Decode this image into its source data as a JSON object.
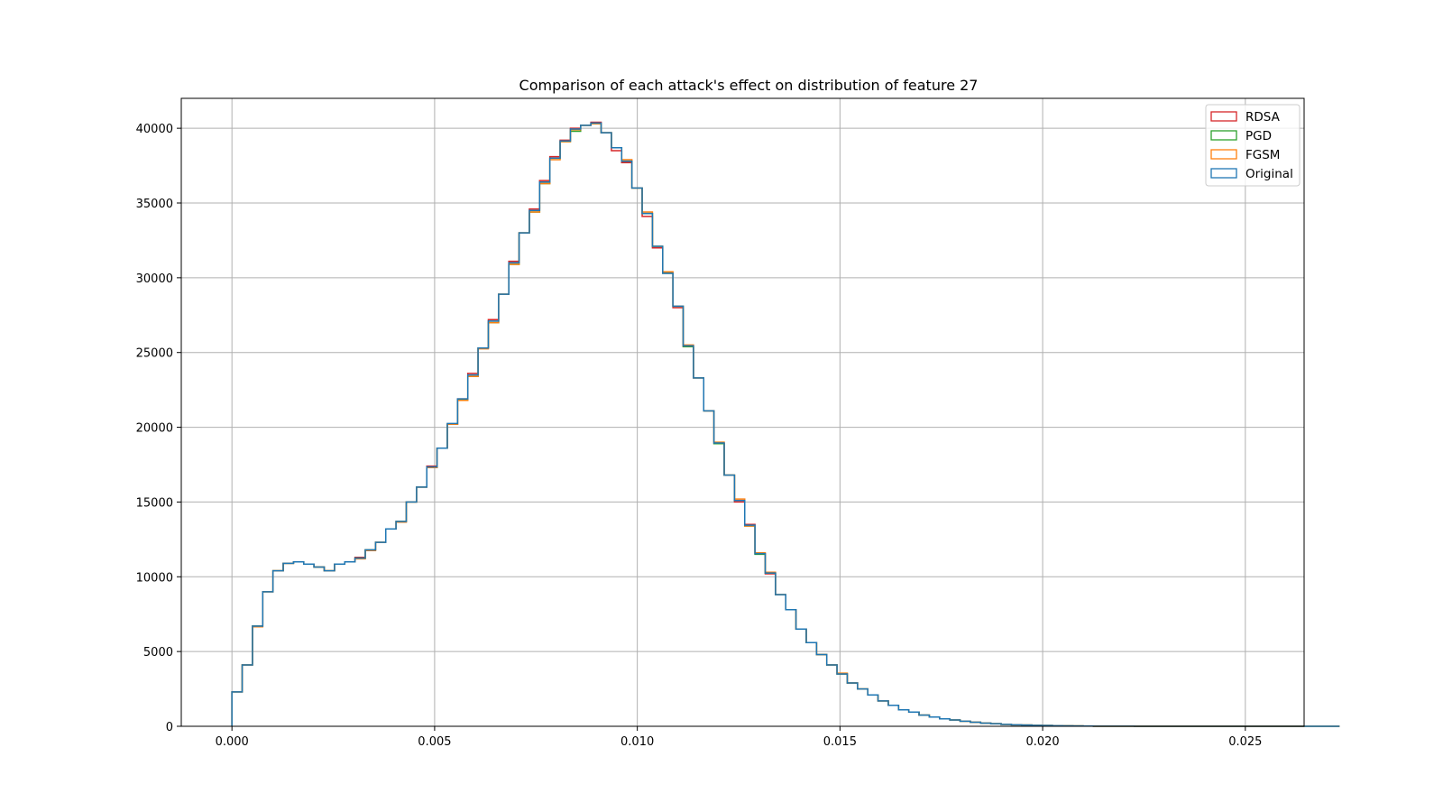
{
  "chart_data": {
    "type": "histogram",
    "histtype": "step",
    "title": "Comparison of each attack's effect on distribution of feature 27",
    "xlabel": "",
    "ylabel": "",
    "xlim": [
      -0.00125,
      0.02645
    ],
    "ylim": [
      0,
      42000
    ],
    "x_ticks": [
      0.0,
      0.005,
      0.01,
      0.015,
      0.02,
      0.025
    ],
    "x_tick_labels": [
      "0.000",
      "0.005",
      "0.010",
      "0.015",
      "0.020",
      "0.025"
    ],
    "y_ticks": [
      0,
      5000,
      10000,
      15000,
      20000,
      25000,
      30000,
      35000,
      40000
    ],
    "y_tick_labels": [
      "0",
      "5000",
      "10000",
      "15000",
      "20000",
      "25000",
      "30000",
      "35000",
      "40000"
    ],
    "grid": true,
    "legend_position": "top-right",
    "bin_start": 0.0,
    "bin_width": 0.000253,
    "series": [
      {
        "name": "RDSA",
        "color": "#d62728",
        "values": [
          2300,
          4100,
          6700,
          9000,
          10400,
          10900,
          11000,
          10850,
          10650,
          10400,
          10850,
          11000,
          11300,
          11800,
          12300,
          13200,
          13700,
          15000,
          16000,
          17400,
          18600,
          20200,
          21900,
          23600,
          25300,
          27200,
          28900,
          31100,
          33000,
          34600,
          36500,
          38100,
          39200,
          40000,
          40200,
          40400,
          39700,
          38500,
          37700,
          36000,
          34100,
          32000,
          30300,
          28000,
          25400,
          23300,
          21100,
          18900,
          16800,
          15000,
          13500,
          11550,
          10200,
          8800,
          7800,
          6500,
          5600,
          4800,
          4100,
          3500,
          2900,
          2500,
          2100,
          1700,
          1400,
          1100,
          950,
          750,
          620,
          500,
          420,
          340,
          270,
          210,
          170,
          130,
          100,
          80,
          60,
          50,
          40,
          30,
          20,
          15,
          10,
          8,
          5,
          4,
          3,
          2,
          2,
          1,
          1,
          1,
          0,
          0,
          0,
          0,
          0,
          0,
          0,
          0,
          0,
          0,
          0,
          0,
          0,
          0
        ]
      },
      {
        "name": "PGD",
        "color": "#2ca02c",
        "values": [
          2300,
          4100,
          6700,
          9000,
          10400,
          10900,
          11000,
          10850,
          10650,
          10400,
          10850,
          11000,
          11250,
          11800,
          12300,
          13200,
          13700,
          15000,
          16000,
          17300,
          18600,
          20200,
          21850,
          23400,
          25300,
          27000,
          28900,
          30900,
          33000,
          34400,
          36300,
          38000,
          39100,
          39800,
          40200,
          40300,
          39700,
          38700,
          37800,
          36000,
          34300,
          32100,
          30300,
          28100,
          25400,
          23300,
          21100,
          18900,
          16800,
          15100,
          13400,
          11500,
          10250,
          8800,
          7800,
          6500,
          5600,
          4800,
          4100,
          3500,
          2900,
          2500,
          2100,
          1700,
          1400,
          1100,
          950,
          750,
          620,
          500,
          420,
          340,
          270,
          210,
          170,
          130,
          100,
          80,
          60,
          50,
          40,
          30,
          20,
          15,
          10,
          8,
          5,
          4,
          3,
          2,
          2,
          1,
          1,
          1,
          0,
          0,
          0,
          0,
          0,
          0,
          0,
          0,
          0,
          0,
          0,
          0,
          0,
          0
        ]
      },
      {
        "name": "FGSM",
        "color": "#ff7f0e",
        "values": [
          2300,
          4100,
          6650,
          9000,
          10400,
          10900,
          11000,
          10850,
          10650,
          10400,
          10850,
          11000,
          11200,
          11750,
          12300,
          13200,
          13650,
          15000,
          16000,
          17300,
          18600,
          20200,
          21800,
          23400,
          25250,
          27000,
          28900,
          30900,
          33000,
          34400,
          36300,
          37900,
          39100,
          39900,
          40200,
          40300,
          39700,
          38700,
          37900,
          36000,
          34400,
          32100,
          30400,
          28100,
          25500,
          23300,
          21100,
          19000,
          16800,
          15200,
          13400,
          11600,
          10300,
          8800,
          7800,
          6500,
          5600,
          4800,
          4100,
          3550,
          2900,
          2500,
          2100,
          1700,
          1400,
          1100,
          950,
          750,
          620,
          500,
          420,
          340,
          270,
          210,
          170,
          130,
          100,
          80,
          60,
          50,
          40,
          30,
          20,
          15,
          10,
          8,
          5,
          4,
          3,
          2,
          2,
          1,
          1,
          1,
          0,
          0,
          0,
          0,
          0,
          0,
          0,
          0,
          0,
          0,
          0,
          0,
          0,
          0
        ]
      },
      {
        "name": "Original",
        "color": "#1f77b4",
        "values": [
          2300,
          4100,
          6700,
          9000,
          10400,
          10900,
          11000,
          10850,
          10650,
          10400,
          10850,
          11000,
          11250,
          11800,
          12300,
          13200,
          13700,
          15000,
          16000,
          17350,
          18600,
          20250,
          21900,
          23500,
          25300,
          27100,
          28900,
          31000,
          33000,
          34500,
          36400,
          38000,
          39150,
          39950,
          40200,
          40350,
          39700,
          38700,
          37800,
          36000,
          34300,
          32100,
          30300,
          28100,
          25450,
          23300,
          21100,
          18950,
          16800,
          15100,
          13450,
          11550,
          10250,
          8800,
          7800,
          6500,
          5600,
          4800,
          4100,
          3500,
          2900,
          2500,
          2100,
          1700,
          1400,
          1100,
          950,
          750,
          620,
          500,
          420,
          340,
          270,
          210,
          170,
          130,
          100,
          80,
          60,
          50,
          40,
          30,
          20,
          15,
          10,
          8,
          5,
          4,
          3,
          2,
          2,
          1,
          1,
          1,
          0,
          0,
          0,
          0,
          0,
          0,
          0,
          0,
          0,
          0,
          0,
          0,
          0,
          0
        ]
      }
    ],
    "legend_order": [
      "RDSA",
      "PGD",
      "FGSM",
      "Original"
    ]
  }
}
